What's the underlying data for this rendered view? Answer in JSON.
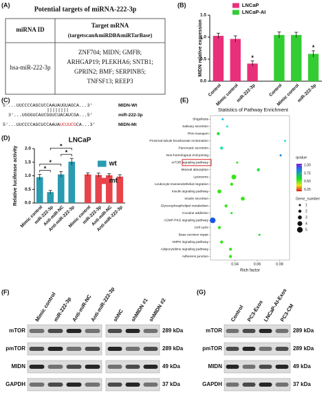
{
  "panel_a": {
    "label": "(A)",
    "title": "Potential targets of miRNA-222-3p",
    "columns": [
      "miRNA ID",
      "Target mRNA"
    ],
    "column_note": "(targetscan&miRDB&miRTarBase)",
    "rows": [
      [
        "hsa-miR-222-3p",
        [
          "ZNF704; MIDN; GMFB;",
          "ARHGAP19; PLEKHA6; SNTB1;",
          "GPRIN2; BMF; SERPINB5;",
          "TNFSF13; REEP3"
        ]
      ]
    ]
  },
  "panel_c": {
    "label": "(C)",
    "highlight_color": "#d62728",
    "lines": [
      {
        "parts": [
          "5'...UUCCCCAGCUCCAAUAUGUAGCA...3'"
        ],
        "name": "MIDN-Wt"
      },
      {
        "parts": [
          "3'...UGGGUCAUCGGUCUACAUCGA...5'"
        ],
        "name": "miR-222-3p"
      },
      {
        "parts": [
          "5'...UUCCCCAGCUCCAAUA",
          "UCUUCG",
          "CA...3'"
        ],
        "name": "MIDN-Mt",
        "highlight_part": 1
      }
    ]
  },
  "chart_data": [
    {
      "type": "bar",
      "label": "(B)",
      "y_label": "MIDN relative expression",
      "categories": [
        "Control",
        "Mimic control",
        "miR-222-3p",
        "Control",
        "Mimic control",
        "miR-222-3p"
      ],
      "series": [
        {
          "name": "LNCaP",
          "color": "#e8307a",
          "values": [
            1.03,
            0.96,
            0.4,
            null,
            null,
            null
          ],
          "errors": [
            0.06,
            0.07,
            0.06,
            null,
            null,
            null
          ],
          "marks": [
            null,
            null,
            "*",
            null,
            null,
            null
          ]
        },
        {
          "name": "LNCaP-AI",
          "color": "#33cc33",
          "values": [
            null,
            null,
            null,
            1.05,
            1.05,
            0.62
          ],
          "errors": [
            null,
            null,
            null,
            0.07,
            0.06,
            0.07
          ],
          "marks": [
            null,
            null,
            null,
            null,
            null,
            "*"
          ]
        }
      ],
      "ylim": [
        0,
        1.5
      ],
      "yticks": [
        {
          "value": 0,
          "label": "0.0"
        },
        {
          "value": 0.5,
          "label": "0.5"
        },
        {
          "value": 1,
          "label": "1.0"
        },
        {
          "value": 1.5,
          "label": "1.5"
        }
      ]
    },
    {
      "type": "bar",
      "label": "(D)",
      "title": "LNCaP",
      "y_label": "Relative luciferase activity",
      "categories": [
        "Mimic control",
        "miR-222-3p",
        "Anti-miR-NC",
        "Anti-miR-222-3p",
        "Mimic control",
        "miR-222-3p",
        "Anti-miR-NC",
        "Anti-miR-222-3p"
      ],
      "series": [
        {
          "name": "wt",
          "color": "#2a9bb0",
          "values": [
            0.95,
            0.4,
            1.05,
            1.52,
            null,
            null,
            null,
            null
          ],
          "errors": [
            0.1,
            0.06,
            0.1,
            0.12,
            null,
            null,
            null,
            null
          ]
        },
        {
          "name": "mt",
          "color": "#e8434a",
          "values": [
            null,
            null,
            null,
            null,
            1.05,
            1.03,
            1.02,
            0.97
          ],
          "errors": [
            null,
            null,
            null,
            null,
            0.06,
            0.07,
            0.06,
            0.07
          ]
        }
      ],
      "comparisons": [
        {
          "pair": [
            0,
            1
          ],
          "label": "*"
        },
        {
          "pair": [
            2,
            3
          ],
          "label": "*"
        },
        {
          "pair": [
            0,
            2
          ],
          "label": "*"
        },
        {
          "pair": [
            1,
            3
          ],
          "label": "*"
        }
      ],
      "ylim": [
        0,
        2
      ],
      "yticks": [
        {
          "value": 0,
          "label": "0.0"
        },
        {
          "value": 0.5,
          "label": "0.5"
        },
        {
          "value": 1,
          "label": "1.0"
        },
        {
          "value": 1.5,
          "label": "1.5"
        },
        {
          "value": 2,
          "label": "2.0"
        }
      ]
    },
    {
      "type": "scatter",
      "label": "(E)",
      "title": "Statistics of Pathway Enrichment",
      "x_label": "Rich factor",
      "categories": [
        "Shigellosis",
        "Salivary secretion",
        "RNA transport",
        "Proximal tubule bicarbonate reclamation",
        "Pancreatic secretion",
        "Non-homologous end-joining",
        "mTOR signaling pathway",
        "Mineral absorption",
        "Lysosome",
        "Leukocyte transendothelial migration",
        "Insulin signaling pathway",
        "Insulin secretion",
        "Glycerophospholipid metabolism",
        "Cocaine addiction",
        "cGMP-PKG signaling pathway",
        "Cell cycle",
        "Base excision repair",
        "AMPK signaling pathway",
        "Adipocytokine signaling pathway",
        "Adherens junction"
      ],
      "x": [
        0.029,
        0.033,
        0.025,
        0.085,
        0.028,
        0.081,
        0.042,
        0.061,
        0.039,
        0.037,
        0.026,
        0.047,
        0.032,
        0.037,
        0.02,
        0.026,
        0.062,
        0.028,
        0.036,
        0.036
      ],
      "size": [
        1,
        1,
        2,
        1,
        2,
        1,
        1,
        2,
        4,
        2,
        3,
        3,
        2,
        1,
        5,
        2,
        1,
        2,
        2,
        2
      ],
      "qvalue": [
        0.8,
        0.75,
        0.6,
        0.75,
        0.7,
        0.85,
        0.55,
        0.6,
        0.55,
        0.55,
        0.55,
        0.55,
        0.55,
        0.6,
        0.9,
        0.55,
        0.6,
        0.55,
        0.55,
        0.55
      ],
      "highlight": 6,
      "xlim": [
        0.018,
        0.089
      ],
      "xticks": [
        0.04,
        0.06,
        0.08
      ],
      "color_legend": {
        "title": "qvalue",
        "lim": [
          0.2,
          1.05
        ],
        "ticks": [
          0.25,
          {
            "value": 0.5,
            "label": "0.50"
          },
          0.75,
          {
            "value": 1,
            "label": "1.00"
          }
        ]
      },
      "size_legend": {
        "title": "Gene_number",
        "values": [
          1,
          2,
          3,
          4,
          5
        ]
      }
    }
  ],
  "blots": [
    {
      "label": "(F)",
      "lane_groups": [
        [
          "Mimic control",
          "miR-222-3p",
          "Anti-miR-NC",
          "Anti-miR-222-3p"
        ],
        [
          "shNC",
          "shMIDN #1",
          "shMIDN #2"
        ]
      ],
      "rows": [
        "mTOR",
        "pmTOR",
        "MIDN",
        "GAPDH"
      ],
      "sizes": [
        "289 kDa",
        "289 kDa",
        "49 kDa",
        "37 kDa"
      ]
    },
    {
      "label": "(G)",
      "lane_groups": [
        [
          "Control",
          "PC3-Exos",
          "LNCaP-AI-Exos",
          "PC3-CM"
        ]
      ],
      "rows": [
        "mTOR",
        "pmTOR",
        "MIDN",
        "GAPDH"
      ],
      "sizes": [
        "289 kDa",
        "289 kDa",
        "49 kDa",
        "37 kDa"
      ]
    }
  ]
}
